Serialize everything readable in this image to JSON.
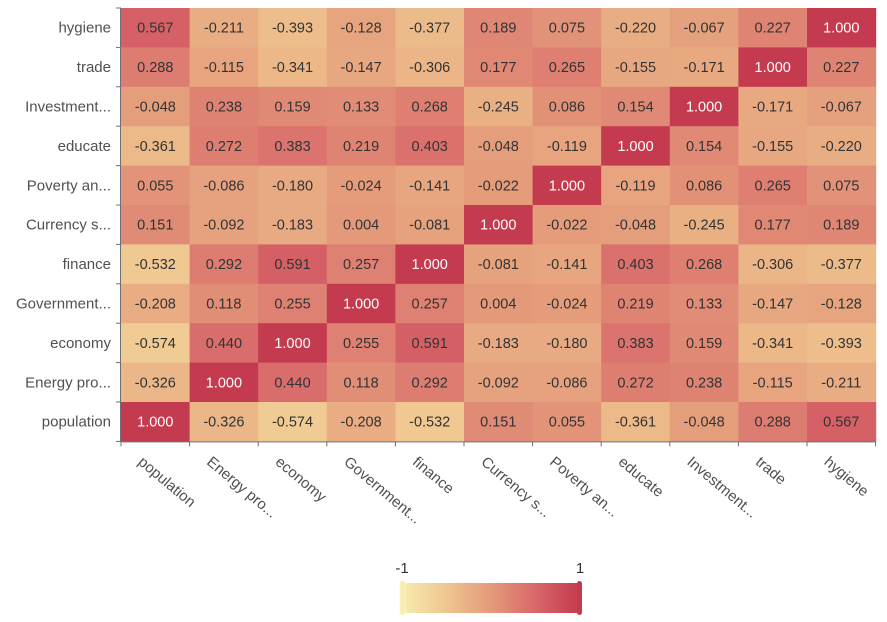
{
  "chart_data": {
    "type": "heatmap",
    "title": "",
    "xlabel": "",
    "ylabel": "",
    "x_categories": [
      "population",
      "Energy pro...",
      "economy",
      "Government...",
      "finance",
      "Currency s...",
      "Poverty an...",
      "educate",
      "Investment...",
      "trade",
      "hygiene"
    ],
    "y_categories": [
      "hygiene",
      "trade",
      "Investment...",
      "educate",
      "Poverty an...",
      "Currency s...",
      "finance",
      "Government...",
      "economy",
      "Energy pro...",
      "population"
    ],
    "values": [
      [
        "0.567",
        "-0.211",
        "-0.393",
        "-0.128",
        "-0.377",
        "0.189",
        "0.075",
        "-0.220",
        "-0.067",
        "0.227",
        "1.000"
      ],
      [
        "0.288",
        "-0.115",
        "-0.341",
        "-0.147",
        "-0.306",
        "0.177",
        "0.265",
        "-0.155",
        "-0.171",
        "1.000",
        "0.227"
      ],
      [
        "-0.048",
        "0.238",
        "0.159",
        "0.133",
        "0.268",
        "-0.245",
        "0.086",
        "0.154",
        "1.000",
        "-0.171",
        "-0.067"
      ],
      [
        "-0.361",
        "0.272",
        "0.383",
        "0.219",
        "0.403",
        "-0.048",
        "-0.119",
        "1.000",
        "0.154",
        "-0.155",
        "-0.220"
      ],
      [
        "0.055",
        "-0.086",
        "-0.180",
        "-0.024",
        "-0.141",
        "-0.022",
        "1.000",
        "-0.119",
        "0.086",
        "0.265",
        "0.075"
      ],
      [
        "0.151",
        "-0.092",
        "-0.183",
        "0.004",
        "-0.081",
        "1.000",
        "-0.022",
        "-0.048",
        "-0.245",
        "0.177",
        "0.189"
      ],
      [
        "-0.532",
        "0.292",
        "0.591",
        "0.257",
        "1.000",
        "-0.081",
        "-0.141",
        "0.403",
        "0.268",
        "-0.306",
        "-0.377"
      ],
      [
        "-0.208",
        "0.118",
        "0.255",
        "1.000",
        "0.257",
        "0.004",
        "-0.024",
        "0.219",
        "0.133",
        "-0.147",
        "-0.128"
      ],
      [
        "-0.574",
        "0.440",
        "1.000",
        "0.255",
        "0.591",
        "-0.183",
        "-0.180",
        "0.383",
        "0.159",
        "-0.341",
        "-0.393"
      ],
      [
        "-0.326",
        "1.000",
        "0.440",
        "0.118",
        "0.292",
        "-0.092",
        "-0.086",
        "0.272",
        "0.238",
        "-0.115",
        "-0.211"
      ],
      [
        "1.000",
        "-0.326",
        "-0.574",
        "-0.208",
        "-0.532",
        "0.151",
        "0.055",
        "-0.361",
        "-0.048",
        "0.288",
        "0.567"
      ]
    ],
    "color_range": [
      -1,
      1
    ],
    "colormap": [
      "#f7ecb0",
      "#efc68f",
      "#e49a7a",
      "#d8676a",
      "#c43a4e"
    ],
    "visual_map": {
      "min_label": "-1",
      "max_label": "1",
      "position": "bottom-center"
    },
    "grid": false
  }
}
